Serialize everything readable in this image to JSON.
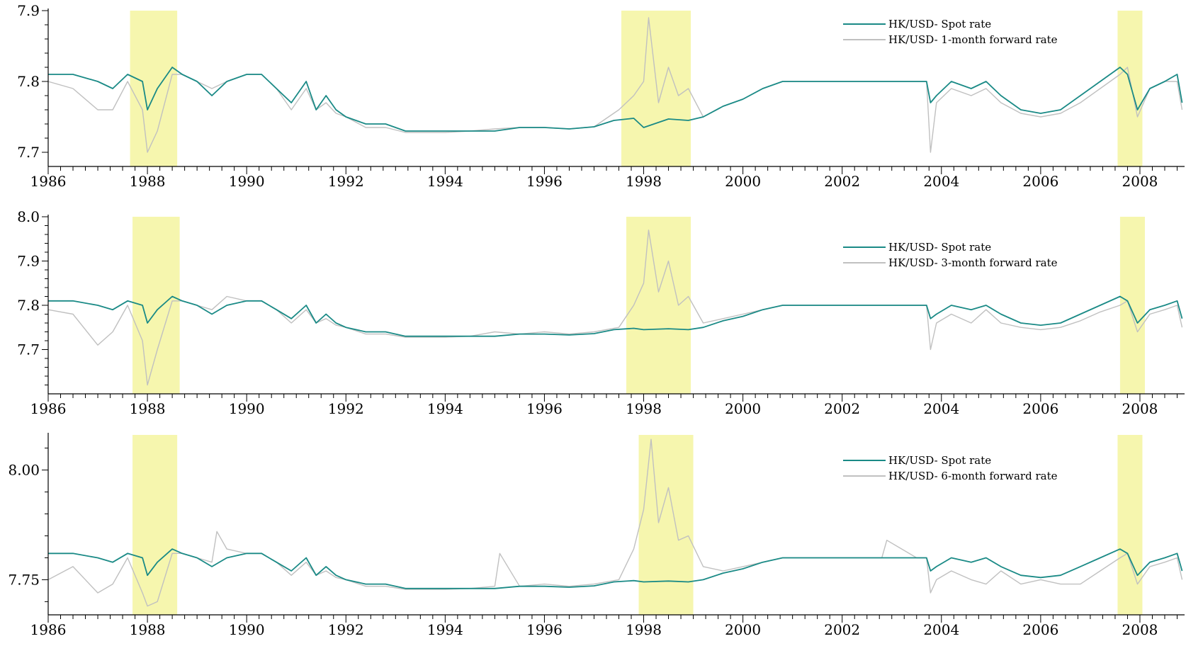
{
  "chart_data": [
    {
      "type": "line",
      "title": "",
      "xlabel": "",
      "ylabel": "",
      "xlim": [
        1986,
        2008.9
      ],
      "ylim": [
        7.68,
        7.9
      ],
      "x_ticks": [
        1986,
        1988,
        1990,
        1992,
        1994,
        1996,
        1998,
        2000,
        2002,
        2004,
        2006,
        2008
      ],
      "x_tick_labels": [
        "1986",
        "1988",
        "1990",
        "1992",
        "1994",
        "1996",
        "1998",
        "2000",
        "2002",
        "2004",
        "2006",
        "2008"
      ],
      "y_ticks": [
        7.7,
        7.8,
        7.9
      ],
      "y_tick_labels": [
        "7.7",
        "7.8",
        "7.9"
      ],
      "highlight_bands": [
        [
          1987.65,
          1988.6
        ],
        [
          1997.55,
          1998.95
        ],
        [
          2007.55,
          2008.05
        ]
      ],
      "legend": {
        "position": "top-right",
        "entries": [
          "HK/USD- Spot rate",
          "HK/USD- 1-month forward rate"
        ]
      },
      "series": [
        {
          "name": "HK/USD- Spot rate",
          "color": "#1a8a86",
          "x": [
            1986.0,
            1986.5,
            1987.0,
            1987.3,
            1987.6,
            1987.9,
            1988.0,
            1988.2,
            1988.5,
            1988.7,
            1989.0,
            1989.3,
            1989.6,
            1990.0,
            1990.3,
            1990.6,
            1990.9,
            1991.2,
            1991.4,
            1991.6,
            1991.8,
            1992.0,
            1992.4,
            1992.8,
            1993.2,
            1993.6,
            1994.0,
            1994.5,
            1995.0,
            1995.5,
            1996.0,
            1996.5,
            1997.0,
            1997.4,
            1997.8,
            1998.0,
            1998.5,
            1998.9,
            1999.2,
            1999.6,
            2000.0,
            2000.4,
            2000.8,
            2001.2,
            2002.0,
            2002.8,
            2003.5,
            2003.7,
            2003.78,
            2003.9,
            2004.2,
            2004.6,
            2004.9,
            2005.2,
            2005.6,
            2006.0,
            2006.4,
            2006.8,
            2007.2,
            2007.6,
            2007.75,
            2007.95,
            2008.2,
            2008.5,
            2008.75,
            2008.85
          ],
          "y": [
            7.81,
            7.81,
            7.8,
            7.79,
            7.81,
            7.8,
            7.76,
            7.79,
            7.82,
            7.81,
            7.8,
            7.78,
            7.8,
            7.81,
            7.81,
            7.79,
            7.77,
            7.8,
            7.76,
            7.78,
            7.76,
            7.75,
            7.74,
            7.74,
            7.73,
            7.73,
            7.73,
            7.73,
            7.73,
            7.735,
            7.735,
            7.733,
            7.736,
            7.745,
            7.748,
            7.735,
            7.747,
            7.745,
            7.75,
            7.765,
            7.775,
            7.79,
            7.8,
            7.8,
            7.8,
            7.8,
            7.8,
            7.8,
            7.77,
            7.78,
            7.8,
            7.79,
            7.8,
            7.78,
            7.76,
            7.755,
            7.76,
            7.78,
            7.8,
            7.82,
            7.81,
            7.76,
            7.79,
            7.8,
            7.81,
            7.77
          ]
        },
        {
          "name": "HK/USD- 1-month forward rate",
          "color": "#c0c0c0",
          "x": [
            1986.0,
            1986.5,
            1987.0,
            1987.3,
            1987.6,
            1987.9,
            1988.0,
            1988.2,
            1988.5,
            1988.7,
            1989.0,
            1989.3,
            1989.6,
            1990.0,
            1990.3,
            1990.6,
            1990.9,
            1991.2,
            1991.4,
            1991.6,
            1991.8,
            1992.0,
            1992.4,
            1992.8,
            1993.2,
            1993.6,
            1994.0,
            1994.5,
            1995.0,
            1995.5,
            1996.0,
            1996.5,
            1997.0,
            1997.5,
            1997.8,
            1998.0,
            1998.1,
            1998.3,
            1998.5,
            1998.7,
            1998.9,
            1999.2,
            1999.6,
            2000.0,
            2000.4,
            2000.8,
            2001.2,
            2002.0,
            2002.8,
            2003.5,
            2003.7,
            2003.78,
            2003.9,
            2004.2,
            2004.6,
            2004.9,
            2005.2,
            2005.6,
            2006.0,
            2006.4,
            2006.8,
            2007.2,
            2007.6,
            2007.75,
            2007.95,
            2008.2,
            2008.5,
            2008.75,
            2008.85
          ],
          "y": [
            7.8,
            7.79,
            7.76,
            7.76,
            7.8,
            7.76,
            7.7,
            7.73,
            7.81,
            7.81,
            7.8,
            7.79,
            7.8,
            7.81,
            7.81,
            7.79,
            7.76,
            7.79,
            7.76,
            7.77,
            7.755,
            7.75,
            7.735,
            7.735,
            7.728,
            7.728,
            7.728,
            7.73,
            7.733,
            7.735,
            7.735,
            7.733,
            7.736,
            7.76,
            7.78,
            7.8,
            7.89,
            7.77,
            7.82,
            7.78,
            7.79,
            7.75,
            7.765,
            7.775,
            7.79,
            7.8,
            7.8,
            7.8,
            7.8,
            7.8,
            7.8,
            7.7,
            7.77,
            7.79,
            7.78,
            7.79,
            7.77,
            7.755,
            7.75,
            7.755,
            7.77,
            7.79,
            7.81,
            7.82,
            7.75,
            7.79,
            7.8,
            7.8,
            7.76
          ]
        }
      ]
    },
    {
      "type": "line",
      "title": "",
      "xlabel": "",
      "ylabel": "",
      "xlim": [
        1986,
        2008.9
      ],
      "ylim": [
        7.6,
        8.0
      ],
      "x_ticks": [
        1986,
        1988,
        1990,
        1992,
        1994,
        1996,
        1998,
        2000,
        2002,
        2004,
        2006,
        2008
      ],
      "x_tick_labels": [
        "1986",
        "1988",
        "1990",
        "1992",
        "1994",
        "1996",
        "1998",
        "2000",
        "2002",
        "2004",
        "2006",
        "2008"
      ],
      "y_ticks": [
        7.7,
        7.8,
        7.9,
        8.0
      ],
      "y_tick_labels": [
        "7.7",
        "7.8",
        "7.9",
        "8.0"
      ],
      "highlight_bands": [
        [
          1987.7,
          1988.65
        ],
        [
          1997.65,
          1998.95
        ],
        [
          2007.6,
          2008.1
        ]
      ],
      "legend": {
        "position": "top-right",
        "entries": [
          "HK/USD- Spot rate",
          "HK/USD- 3-month forward rate"
        ]
      },
      "series": [
        {
          "name": "HK/USD- Spot rate",
          "color": "#1a8a86",
          "x": [
            1986.0,
            1986.5,
            1987.0,
            1987.3,
            1987.6,
            1987.9,
            1988.0,
            1988.2,
            1988.5,
            1988.7,
            1989.0,
            1989.3,
            1989.6,
            1990.0,
            1990.3,
            1990.6,
            1990.9,
            1991.2,
            1991.4,
            1991.6,
            1991.8,
            1992.0,
            1992.4,
            1992.8,
            1993.2,
            1993.6,
            1994.0,
            1994.5,
            1995.0,
            1995.5,
            1996.0,
            1996.5,
            1997.0,
            1997.4,
            1997.8,
            1998.0,
            1998.5,
            1998.9,
            1999.2,
            1999.6,
            2000.0,
            2000.4,
            2000.8,
            2001.2,
            2002.0,
            2002.8,
            2003.5,
            2003.7,
            2003.78,
            2003.9,
            2004.2,
            2004.6,
            2004.9,
            2005.2,
            2005.6,
            2006.0,
            2006.4,
            2006.8,
            2007.2,
            2007.6,
            2007.75,
            2007.95,
            2008.2,
            2008.5,
            2008.75,
            2008.85
          ],
          "y": [
            7.81,
            7.81,
            7.8,
            7.79,
            7.81,
            7.8,
            7.76,
            7.79,
            7.82,
            7.81,
            7.8,
            7.78,
            7.8,
            7.81,
            7.81,
            7.79,
            7.77,
            7.8,
            7.76,
            7.78,
            7.76,
            7.75,
            7.74,
            7.74,
            7.73,
            7.73,
            7.73,
            7.73,
            7.73,
            7.735,
            7.735,
            7.733,
            7.736,
            7.745,
            7.748,
            7.745,
            7.747,
            7.745,
            7.75,
            7.765,
            7.775,
            7.79,
            7.8,
            7.8,
            7.8,
            7.8,
            7.8,
            7.8,
            7.77,
            7.78,
            7.8,
            7.79,
            7.8,
            7.78,
            7.76,
            7.755,
            7.76,
            7.78,
            7.8,
            7.82,
            7.81,
            7.76,
            7.79,
            7.8,
            7.81,
            7.77
          ]
        },
        {
          "name": "HK/USD- 3-month forward rate",
          "color": "#c0c0c0",
          "x": [
            1986.0,
            1986.5,
            1987.0,
            1987.3,
            1987.6,
            1987.9,
            1988.0,
            1988.2,
            1988.5,
            1988.7,
            1989.0,
            1989.3,
            1989.6,
            1990.0,
            1990.3,
            1990.6,
            1990.9,
            1991.2,
            1991.4,
            1991.6,
            1991.8,
            1992.0,
            1992.4,
            1992.8,
            1993.2,
            1993.6,
            1994.0,
            1994.5,
            1995.0,
            1995.5,
            1996.0,
            1996.5,
            1997.0,
            1997.5,
            1997.8,
            1998.0,
            1998.1,
            1998.3,
            1998.5,
            1998.7,
            1998.9,
            1999.2,
            1999.6,
            2000.0,
            2000.4,
            2000.8,
            2001.2,
            2002.0,
            2002.8,
            2003.5,
            2003.7,
            2003.78,
            2003.9,
            2004.2,
            2004.6,
            2004.9,
            2005.2,
            2005.6,
            2006.0,
            2006.4,
            2006.8,
            2007.2,
            2007.6,
            2007.75,
            2007.95,
            2008.2,
            2008.5,
            2008.75,
            2008.85
          ],
          "y": [
            7.79,
            7.78,
            7.71,
            7.74,
            7.8,
            7.72,
            7.62,
            7.7,
            7.81,
            7.81,
            7.8,
            7.79,
            7.82,
            7.81,
            7.81,
            7.79,
            7.76,
            7.79,
            7.76,
            7.77,
            7.755,
            7.75,
            7.735,
            7.735,
            7.728,
            7.728,
            7.728,
            7.73,
            7.74,
            7.735,
            7.74,
            7.735,
            7.74,
            7.75,
            7.8,
            7.85,
            7.97,
            7.83,
            7.9,
            7.8,
            7.82,
            7.76,
            7.77,
            7.78,
            7.79,
            7.8,
            7.8,
            7.8,
            7.8,
            7.8,
            7.8,
            7.7,
            7.76,
            7.78,
            7.76,
            7.79,
            7.76,
            7.75,
            7.745,
            7.75,
            7.765,
            7.785,
            7.8,
            7.81,
            7.74,
            7.78,
            7.79,
            7.8,
            7.75
          ]
        }
      ]
    },
    {
      "type": "line",
      "title": "",
      "xlabel": "",
      "ylabel": "",
      "xlim": [
        1986,
        2008.9
      ],
      "ylim": [
        7.67,
        8.08
      ],
      "x_ticks": [
        1986,
        1988,
        1990,
        1992,
        1994,
        1996,
        1998,
        2000,
        2002,
        2004,
        2006,
        2008
      ],
      "x_tick_labels": [
        "1986",
        "1988",
        "1990",
        "1992",
        "1994",
        "1996",
        "1998",
        "2000",
        "2002",
        "2004",
        "2006",
        "2008"
      ],
      "y_ticks": [
        7.75,
        8.0
      ],
      "y_tick_labels": [
        "7.75",
        "8.00"
      ],
      "highlight_bands": [
        [
          1987.7,
          1988.6
        ],
        [
          1997.9,
          1999.0
        ],
        [
          2007.55,
          2008.05
        ]
      ],
      "legend": {
        "position": "top-right",
        "entries": [
          "HK/USD- Spot rate",
          "HK/USD- 6-month forward rate"
        ]
      },
      "series": [
        {
          "name": "HK/USD- Spot rate",
          "color": "#1a8a86",
          "x": [
            1986.0,
            1986.5,
            1987.0,
            1987.3,
            1987.6,
            1987.9,
            1988.0,
            1988.2,
            1988.5,
            1988.7,
            1989.0,
            1989.3,
            1989.6,
            1990.0,
            1990.3,
            1990.6,
            1990.9,
            1991.2,
            1991.4,
            1991.6,
            1991.8,
            1992.0,
            1992.4,
            1992.8,
            1993.2,
            1993.6,
            1994.0,
            1994.5,
            1995.0,
            1995.5,
            1996.0,
            1996.5,
            1997.0,
            1997.4,
            1997.8,
            1998.0,
            1998.5,
            1998.9,
            1999.2,
            1999.6,
            2000.0,
            2000.4,
            2000.8,
            2001.2,
            2002.0,
            2002.8,
            2003.5,
            2003.7,
            2003.78,
            2003.9,
            2004.2,
            2004.6,
            2004.9,
            2005.2,
            2005.6,
            2006.0,
            2006.4,
            2006.8,
            2007.2,
            2007.6,
            2007.75,
            2007.95,
            2008.2,
            2008.5,
            2008.75,
            2008.85
          ],
          "y": [
            7.81,
            7.81,
            7.8,
            7.79,
            7.81,
            7.8,
            7.76,
            7.79,
            7.82,
            7.81,
            7.8,
            7.78,
            7.8,
            7.81,
            7.81,
            7.79,
            7.77,
            7.8,
            7.76,
            7.78,
            7.76,
            7.75,
            7.74,
            7.74,
            7.73,
            7.73,
            7.73,
            7.73,
            7.73,
            7.735,
            7.735,
            7.733,
            7.736,
            7.745,
            7.748,
            7.745,
            7.747,
            7.745,
            7.75,
            7.765,
            7.775,
            7.79,
            7.8,
            7.8,
            7.8,
            7.8,
            7.8,
            7.8,
            7.77,
            7.78,
            7.8,
            7.79,
            7.8,
            7.78,
            7.76,
            7.755,
            7.76,
            7.78,
            7.8,
            7.82,
            7.81,
            7.76,
            7.79,
            7.8,
            7.81,
            7.77
          ]
        },
        {
          "name": "HK/USD- 6-month forward rate",
          "color": "#c0c0c0",
          "x": [
            1986.0,
            1986.5,
            1987.0,
            1987.3,
            1987.6,
            1987.9,
            1988.0,
            1988.2,
            1988.5,
            1988.7,
            1989.0,
            1989.3,
            1989.4,
            1989.6,
            1990.0,
            1990.3,
            1990.6,
            1990.9,
            1991.2,
            1991.4,
            1991.6,
            1991.8,
            1992.0,
            1992.4,
            1992.8,
            1993.2,
            1993.6,
            1994.0,
            1994.5,
            1995.0,
            1995.1,
            1995.5,
            1996.0,
            1996.5,
            1997.0,
            1997.5,
            1997.8,
            1998.0,
            1998.15,
            1998.3,
            1998.5,
            1998.7,
            1998.9,
            1999.2,
            1999.6,
            2000.0,
            2000.4,
            2000.8,
            2001.2,
            2002.0,
            2002.8,
            2002.9,
            2003.5,
            2003.7,
            2003.78,
            2003.9,
            2004.2,
            2004.6,
            2004.9,
            2005.2,
            2005.6,
            2006.0,
            2006.4,
            2006.8,
            2007.2,
            2007.6,
            2007.75,
            2007.95,
            2008.2,
            2008.5,
            2008.75,
            2008.85
          ],
          "y": [
            7.75,
            7.78,
            7.72,
            7.74,
            7.8,
            7.72,
            7.69,
            7.7,
            7.81,
            7.81,
            7.8,
            7.79,
            7.86,
            7.82,
            7.81,
            7.81,
            7.79,
            7.76,
            7.79,
            7.76,
            7.77,
            7.755,
            7.75,
            7.735,
            7.735,
            7.728,
            7.728,
            7.728,
            7.73,
            7.735,
            7.81,
            7.735,
            7.74,
            7.735,
            7.74,
            7.75,
            7.82,
            7.91,
            8.07,
            7.88,
            7.96,
            7.84,
            7.85,
            7.78,
            7.77,
            7.78,
            7.79,
            7.8,
            7.8,
            7.8,
            7.8,
            7.84,
            7.8,
            7.8,
            7.72,
            7.75,
            7.77,
            7.75,
            7.74,
            7.77,
            7.74,
            7.75,
            7.74,
            7.74,
            7.77,
            7.8,
            7.81,
            7.74,
            7.78,
            7.79,
            7.8,
            7.75
          ]
        }
      ]
    }
  ]
}
